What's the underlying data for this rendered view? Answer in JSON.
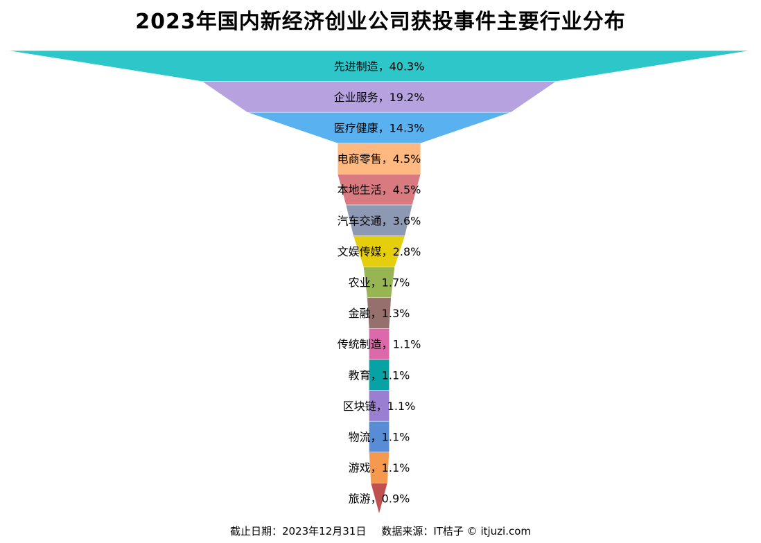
{
  "title": "2023年国内新经济创业公司获投事件主要行业分布",
  "footer": {
    "date_note": "截止日期：2023年12月31日",
    "source_note": "数据来源：IT桔子 © itjuzi.com"
  },
  "chart_data": {
    "type": "funnel",
    "title": "2023年国内新经济创业公司获投事件主要行业分布",
    "label_separator": "，",
    "value_suffix": "%",
    "categories": [
      "先进制造",
      "企业服务",
      "医疗健康",
      "电商零售",
      "本地生活",
      "汽车交通",
      "文娱传媒",
      "农业",
      "金融",
      "传统制造",
      "教育",
      "区块链",
      "物流",
      "游戏",
      "旅游"
    ],
    "values": [
      40.3,
      19.2,
      14.3,
      4.5,
      4.5,
      3.6,
      2.8,
      1.7,
      1.3,
      1.1,
      1.1,
      1.1,
      1.1,
      1.1,
      0.9
    ],
    "colors": [
      "#2ec7c9",
      "#b6a2de",
      "#5ab1ef",
      "#ffb980",
      "#d87a80",
      "#8d98b3",
      "#e5cf0d",
      "#97b552",
      "#95706d",
      "#dc69aa",
      "#07a2a4",
      "#9a7fd1",
      "#588dd5",
      "#f5994e",
      "#c05050"
    ]
  }
}
